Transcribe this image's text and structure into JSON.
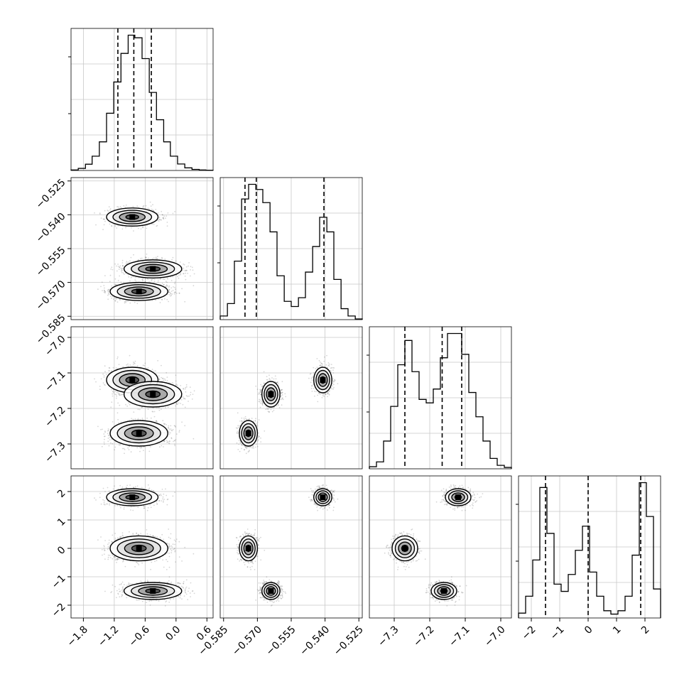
{
  "chart_data": {
    "type": "corner",
    "parameters": [
      {
        "ticks": [
          -1.8,
          -1.2,
          -0.6,
          0.0,
          0.6
        ],
        "tick_labels": [
          "−1.8",
          "−1.2",
          "−0.6",
          "0.0",
          "0.6"
        ],
        "range": [
          -2.04,
          0.72
        ],
        "quantiles": [
          -1.13,
          -0.82,
          -0.48
        ],
        "histogram": {
          "edges": [
            -2.04,
            -1.9,
            -1.76,
            -1.63,
            -1.49,
            -1.35,
            -1.21,
            -1.07,
            -0.93,
            -0.8,
            -0.66,
            -0.52,
            -0.38,
            -0.24,
            -0.11,
            0.03,
            0.17,
            0.31,
            0.45,
            0.58,
            0.72
          ],
          "counts": [
            2,
            8,
            24,
            55,
            110,
            220,
            340,
            450,
            520,
            510,
            430,
            300,
            195,
            110,
            55,
            25,
            10,
            4,
            2,
            1
          ]
        }
      },
      {
        "ticks": [
          -0.585,
          -0.57,
          -0.555,
          -0.54,
          -0.525
        ],
        "tick_labels": [
          "−0.585",
          "−0.570",
          "−0.555",
          "−0.540",
          "−0.525"
        ],
        "range": [
          -0.5865,
          -0.5235
        ],
        "quantiles": [
          -0.5755,
          -0.5705,
          -0.5405
        ],
        "histogram": {
          "edges": [
            -0.5865,
            -0.5833,
            -0.5802,
            -0.577,
            -0.5739,
            -0.5707,
            -0.5676,
            -0.5644,
            -0.5613,
            -0.5581,
            -0.555,
            -0.5518,
            -0.5487,
            -0.5455,
            -0.5424,
            -0.5392,
            -0.5361,
            -0.5329,
            -0.5298,
            -0.5266,
            -0.5235
          ],
          "counts": [
            5,
            22,
            80,
            165,
            185,
            178,
            160,
            120,
            60,
            25,
            18,
            30,
            65,
            100,
            140,
            120,
            55,
            15,
            5,
            1
          ]
        }
      },
      {
        "ticks": [
          -7.3,
          -7.2,
          -7.1,
          -7.0
        ],
        "tick_labels": [
          "−7.3",
          "−7.2",
          "−7.1",
          "−7.0"
        ],
        "range": [
          -7.37,
          -6.97
        ],
        "quantiles": [
          -7.27,
          -7.165,
          -7.11
        ],
        "histogram": {
          "edges": [
            -7.37,
            -7.35,
            -7.33,
            -7.31,
            -7.29,
            -7.27,
            -7.25,
            -7.23,
            -7.21,
            -7.19,
            -7.17,
            -7.15,
            -7.13,
            -7.11,
            -7.09,
            -7.07,
            -7.05,
            -7.03,
            -7.01,
            -6.99,
            -6.97
          ],
          "counts": [
            3,
            10,
            40,
            90,
            150,
            185,
            140,
            100,
            95,
            115,
            160,
            195,
            195,
            165,
            110,
            75,
            40,
            15,
            5,
            2
          ]
        }
      },
      {
        "ticks": [
          -2,
          -1,
          0,
          1,
          2
        ],
        "tick_labels": [
          "−2",
          "−1",
          "0",
          "1",
          "2"
        ],
        "range": [
          -2.45,
          2.55
        ],
        "quantiles": [
          -1.5,
          0.0,
          1.85
        ],
        "histogram": {
          "edges": [
            -2.45,
            -2.2,
            -1.95,
            -1.7,
            -1.45,
            -1.2,
            -0.95,
            -0.7,
            -0.45,
            -0.2,
            0.05,
            0.3,
            0.55,
            0.8,
            1.05,
            1.3,
            1.55,
            1.8,
            2.05,
            2.3,
            2.55
          ],
          "counts": [
            10,
            45,
            120,
            270,
            175,
            70,
            55,
            90,
            140,
            190,
            95,
            45,
            15,
            8,
            15,
            45,
            130,
            280,
            210,
            60
          ]
        }
      }
    ],
    "clusters": [
      {
        "center": [
          -0.85,
          -0.541,
          -7.12,
          1.8
        ],
        "spread": [
          0.25,
          0.002,
          0.018,
          0.15
        ],
        "weight": 0.33
      },
      {
        "center": [
          -0.72,
          -0.574,
          -7.27,
          0.0
        ],
        "spread": [
          0.28,
          0.002,
          0.018,
          0.22
        ],
        "weight": 0.33
      },
      {
        "center": [
          -0.45,
          -0.564,
          -7.16,
          -1.5
        ],
        "spread": [
          0.28,
          0.002,
          0.018,
          0.15
        ],
        "weight": 0.34
      }
    ]
  }
}
